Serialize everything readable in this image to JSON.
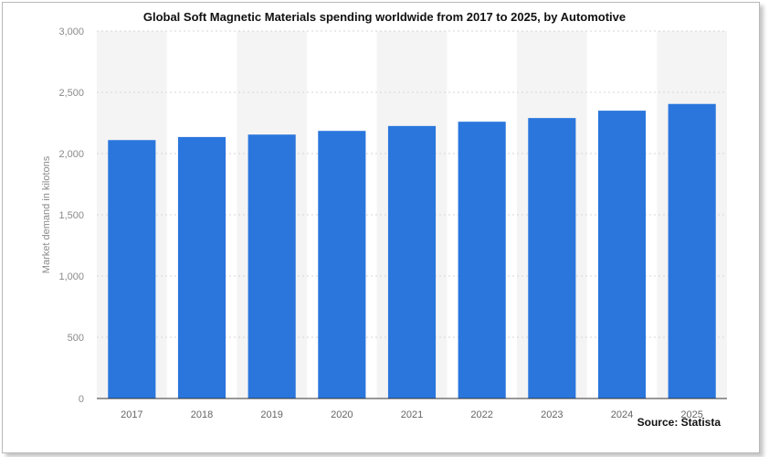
{
  "chart_data": {
    "type": "bar",
    "title": "Global Soft Magnetic Materials spending worldwide from 2017 to 2025, by Automotive",
    "ylabel": "Market demand in kilotons",
    "xlabel": "",
    "categories": [
      "2017",
      "2018",
      "2019",
      "2020",
      "2021",
      "2022",
      "2023",
      "2024",
      "2025"
    ],
    "values": [
      2110,
      2135,
      2155,
      2185,
      2225,
      2260,
      2290,
      2350,
      2405
    ],
    "ylim": [
      0,
      3000
    ],
    "yticks": [
      0,
      500,
      1000,
      1500,
      2000,
      2500,
      3000
    ],
    "ytick_labels": [
      "0",
      "500",
      "1,000",
      "1,500",
      "2,000",
      "2,500",
      "3,000"
    ],
    "grid": true,
    "bar_color": "#2a76dd",
    "band_color": "#f4f4f4",
    "source": "Source: Statista"
  }
}
